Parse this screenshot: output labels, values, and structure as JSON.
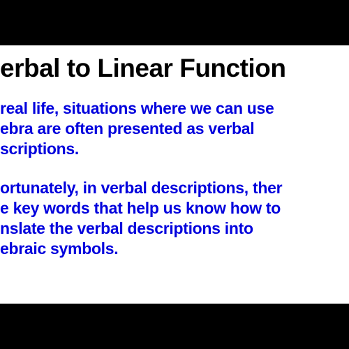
{
  "slide": {
    "title": "erbal to Linear Function",
    "paragraph1_line1": "real life, situations where we can use",
    "paragraph1_line2": "ebra are often presented as verbal",
    "paragraph1_line3": "scriptions.",
    "paragraph2_line1": "ortunately, in verbal descriptions, ther",
    "paragraph2_line2": "e key words that help us know how to",
    "paragraph2_line3": "nslate the verbal descriptions into",
    "paragraph2_line4": "ebraic symbols."
  },
  "colors": {
    "background": "#000000",
    "slide_background": "#ffffff",
    "title_color": "#000000",
    "body_color": "#0000dd"
  },
  "typography": {
    "title_fontsize": 37,
    "body_fontsize": 23,
    "font_family": "Arial",
    "font_weight": "bold"
  }
}
